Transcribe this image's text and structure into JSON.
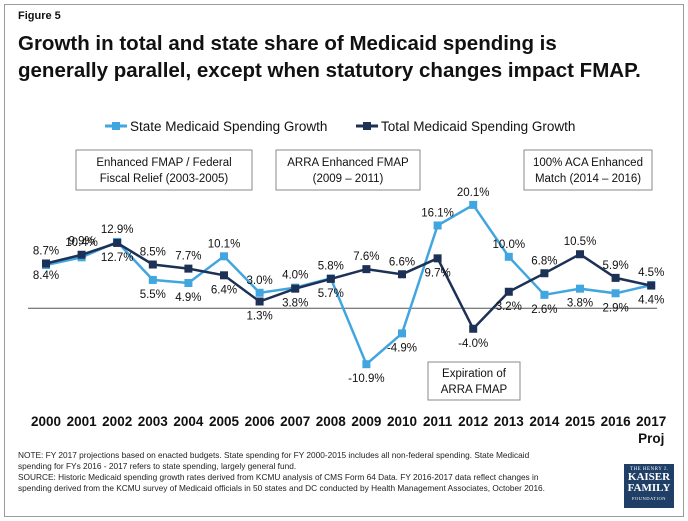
{
  "figure_label": "Figure 5",
  "title_line1": "Growth in total and state share of Medicaid spending is",
  "title_line2": "generally parallel, except when statutory changes impact FMAP.",
  "note_line1": "NOTE: FY 2017 projections based on enacted budgets. State spending for FY 2000-2015 includes all non-federal spending. State Medicaid",
  "note_line2": "spending for FYs 2016 - 2017 refers to state spending, largely general fund.",
  "note_line3": "SOURCE: Historic Medicaid spending growth rates derived from KCMU analysis of CMS Form 64 Data. FY 2016-2017 data reflect changes in",
  "note_line4": "spending derived from the KCMU survey of Medicaid officials in 50 states and DC conducted by Health Management Associates, October 2016.",
  "logo": {
    "line1": "THE HENRY J.",
    "line2": "KAISER",
    "line3": "FAMILY",
    "line4": "FOUNDATION"
  },
  "colors": {
    "state": "#41a6e0",
    "total": "#1c3155",
    "text": "#111111"
  },
  "chart_data": {
    "type": "line",
    "categories": [
      "2000",
      "2001",
      "2002",
      "2003",
      "2004",
      "2005",
      "2006",
      "2007",
      "2008",
      "2009",
      "2010",
      "2011",
      "2012",
      "2013",
      "2014",
      "2015",
      "2016",
      "2017"
    ],
    "category_sublabels": {
      "2017": "Proj"
    },
    "series": [
      {
        "name": "State Medicaid Spending Growth",
        "color": "#41a6e0",
        "marker": "square",
        "values": [
          8.4,
          9.9,
          12.9,
          5.5,
          4.9,
          10.1,
          3.0,
          4.0,
          5.8,
          -10.9,
          -4.9,
          16.1,
          20.1,
          10.0,
          2.6,
          3.8,
          2.9,
          4.5
        ],
        "labels": [
          "8.4%",
          "9.9%",
          "12.9%",
          "5.5%",
          "4.9%",
          "10.1%",
          "3.0%",
          "4.0%",
          "5.8%",
          "-10.9%",
          "-4.9%",
          "16.1%",
          "20.1%",
          "10.0%",
          "2.6%",
          "3.8%",
          "2.9%",
          "4.5%"
        ]
      },
      {
        "name": "Total Medicaid Spending Growth",
        "color": "#1c3155",
        "marker": "square",
        "values": [
          8.7,
          10.4,
          12.7,
          8.5,
          7.7,
          6.4,
          1.3,
          3.8,
          5.7,
          7.6,
          6.6,
          9.7,
          -4.0,
          3.2,
          6.8,
          10.5,
          5.9,
          4.4
        ],
        "labels": [
          "8.7%",
          "10.4%",
          "12.7%",
          "8.5%",
          "7.7%",
          "6.4%",
          "1.3%",
          "3.8%",
          "5.7%",
          "7.6%",
          "6.6%",
          "9.7%",
          "-4.0%",
          "3.2%",
          "6.8%",
          "10.5%",
          "5.9%",
          "4.4%"
        ]
      }
    ],
    "ylim": [
      -13,
      23
    ],
    "legend_position": "top",
    "grid": false,
    "annotations": [
      {
        "line1": "Enhanced FMAP / Federal",
        "line2": "Fiscal Relief (2003-2005)"
      },
      {
        "line1": "ARRA Enhanced FMAP",
        "line2": "(2009 – 2011)"
      },
      {
        "line1": "100% ACA Enhanced",
        "line2": "Match (2014 – 2016)"
      },
      {
        "line1": "Expiration of",
        "line2": "ARRA  FMAP"
      }
    ]
  }
}
